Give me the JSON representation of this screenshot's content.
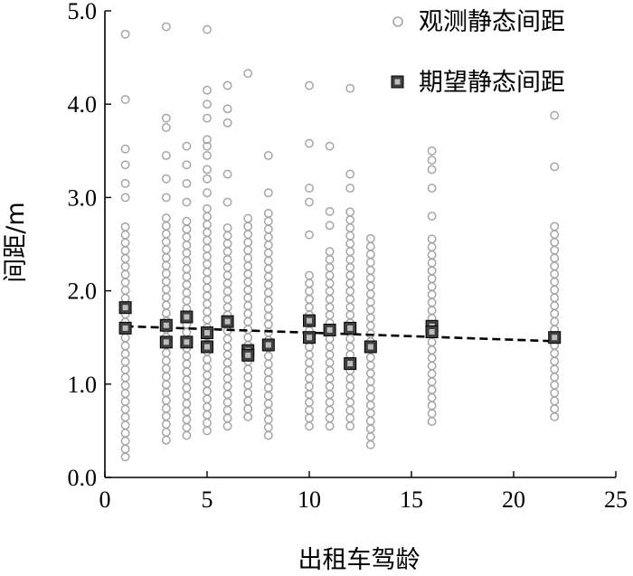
{
  "chart_data": {
    "type": "scatter",
    "xlabel": "出租车驾龄",
    "ylabel": "间距/m",
    "xlim": [
      0,
      25
    ],
    "ylim": [
      0,
      5
    ],
    "x_ticks": [
      "0",
      "5",
      "10",
      "15",
      "20",
      "25"
    ],
    "y_ticks": [
      "0.0",
      "1.0",
      "2.0",
      "3.0",
      "4.0",
      "5.0"
    ],
    "grid": false,
    "legend_position": "top-right",
    "series": [
      {
        "name": "观测静态间距",
        "marker": "open-circle",
        "color": "#a6a6a6",
        "groups": [
          {
            "x": 1,
            "min": 0.22,
            "max": 2.7,
            "outliers": [
              3.0,
              3.15,
              3.35,
              3.52,
              4.05,
              4.75
            ]
          },
          {
            "x": 3,
            "min": 0.4,
            "max": 2.8,
            "outliers": [
              3.0,
              3.2,
              3.45,
              3.75,
              3.85,
              4.83
            ]
          },
          {
            "x": 4,
            "min": 0.45,
            "max": 2.75,
            "outliers": [
              2.95,
              3.15,
              3.35,
              3.55
            ]
          },
          {
            "x": 5,
            "min": 0.5,
            "max": 2.9,
            "outliers": [
              3.05,
              3.2,
              3.3,
              3.45,
              3.55,
              3.62,
              3.85,
              4.0,
              4.15,
              4.8
            ]
          },
          {
            "x": 6,
            "min": 0.55,
            "max": 2.7,
            "outliers": [
              2.95,
              3.25,
              3.8,
              3.95,
              4.2
            ]
          },
          {
            "x": 7,
            "min": 0.65,
            "max": 2.85,
            "outliers": [
              4.33
            ]
          },
          {
            "x": 8,
            "min": 0.45,
            "max": 2.85,
            "outliers": [
              3.05,
              3.45
            ]
          },
          {
            "x": 10,
            "min": 0.55,
            "max": 2.2,
            "outliers": [
              2.6,
              2.95,
              3.1,
              3.58,
              4.2
            ]
          },
          {
            "x": 11,
            "min": 0.55,
            "max": 2.5,
            "outliers": [
              2.7,
              2.85,
              3.55
            ]
          },
          {
            "x": 12,
            "min": 0.55,
            "max": 2.9,
            "outliers": [
              3.1,
              3.25,
              4.17
            ]
          },
          {
            "x": 13,
            "min": 0.35,
            "max": 2.6,
            "outliers": []
          },
          {
            "x": 16,
            "min": 0.6,
            "max": 2.6,
            "outliers": [
              2.8,
              3.1,
              3.3,
              3.4,
              3.5
            ]
          },
          {
            "x": 22,
            "min": 0.65,
            "max": 2.75,
            "outliers": [
              3.33,
              3.88
            ]
          }
        ]
      },
      {
        "name": "期望静态间距",
        "marker": "filled-square",
        "color": "#404040",
        "points": [
          {
            "x": 1,
            "y": 1.82
          },
          {
            "x": 1,
            "y": 1.6
          },
          {
            "x": 3,
            "y": 1.63
          },
          {
            "x": 3,
            "y": 1.45
          },
          {
            "x": 4,
            "y": 1.72
          },
          {
            "x": 4,
            "y": 1.45
          },
          {
            "x": 5,
            "y": 1.55
          },
          {
            "x": 5,
            "y": 1.4
          },
          {
            "x": 6,
            "y": 1.67
          },
          {
            "x": 7,
            "y": 1.36
          },
          {
            "x": 7,
            "y": 1.31
          },
          {
            "x": 8,
            "y": 1.42
          },
          {
            "x": 10,
            "y": 1.68
          },
          {
            "x": 10,
            "y": 1.5
          },
          {
            "x": 11,
            "y": 1.58
          },
          {
            "x": 12,
            "y": 1.6
          },
          {
            "x": 12,
            "y": 1.22
          },
          {
            "x": 13,
            "y": 1.4
          },
          {
            "x": 16,
            "y": 1.62
          },
          {
            "x": 16,
            "y": 1.56
          },
          {
            "x": 22,
            "y": 1.5
          }
        ]
      }
    ],
    "trend_line": {
      "style": "dashed",
      "color": "#000000",
      "x": [
        1,
        22
      ],
      "y": [
        1.62,
        1.46
      ]
    }
  }
}
